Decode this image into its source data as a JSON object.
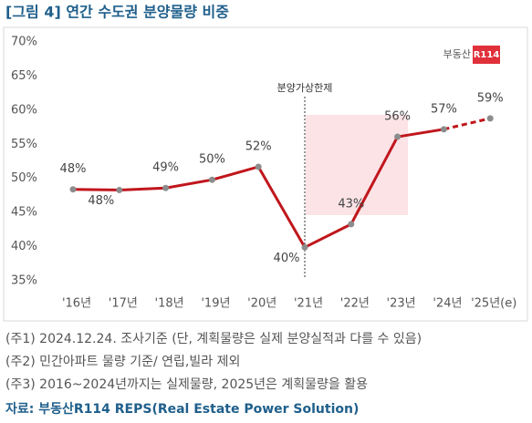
{
  "chart_data": {
    "type": "line",
    "title": "[그림 4] 연간 수도권 분양물량 비중",
    "categories": [
      "'16년",
      "'17년",
      "'18년",
      "'19년",
      "'20년",
      "'21년",
      "'22년",
      "'23년",
      "'24년",
      "'25년(e)"
    ],
    "series": [
      {
        "name": "수도권 분양물량 비중",
        "color": "#c0161c",
        "values": [
          48.4,
          48.3,
          48.6,
          49.8,
          51.7,
          39.9,
          43.3,
          56.1,
          57.2,
          58.8
        ],
        "value_labels": [
          "48%",
          "48%",
          "49%",
          "50%",
          "52%",
          "40%",
          "43%",
          "56%",
          "57%",
          "59%"
        ]
      }
    ],
    "dashed_last_segment": true,
    "ylim": [
      35,
      70
    ],
    "yticks": [
      {
        "value": 35,
        "label": "35%"
      },
      {
        "value": 40,
        "label": "40%"
      },
      {
        "value": 45,
        "label": "45%"
      },
      {
        "value": 50,
        "label": "50%"
      },
      {
        "value": 55,
        "label": "55%"
      },
      {
        "value": 60,
        "label": "60%"
      },
      {
        "value": 65,
        "label": "65%"
      },
      {
        "value": 70,
        "label": "70%"
      }
    ],
    "grid": false,
    "annotation": {
      "text": "분양가상한제",
      "category_index": 5
    },
    "logo": "부동산",
    "logo_badge": "R114"
  },
  "notes": [
    "(주1) 2024.12.24. 조사기준 (단, 계획물량은 실제 분양실적과 다를 수 있음)",
    "(주2) 민간아파트 물량 기준/ 연립,빌라 제외",
    "(주3) 2016~2024년까지는 실제물량, 2025년은 계획물량을 활용"
  ],
  "source": "자료: 부동산R114 REPS(Real Estate Power Solution)"
}
